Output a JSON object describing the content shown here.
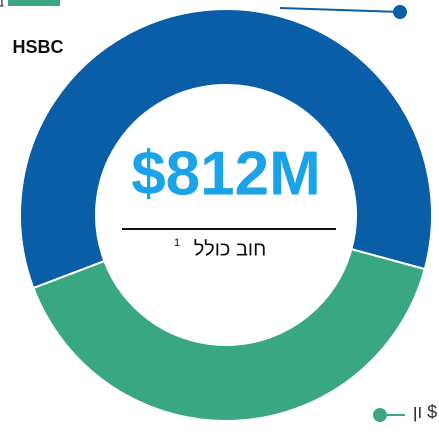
{
  "chart_data": {
    "type": "donut",
    "categories": [
      "HSBC",
      "ון $"
    ],
    "values": [
      60,
      40
    ],
    "colors": [
      "#0a5ea8",
      "#3aa783"
    ],
    "center_value": "$812M",
    "center_label": "חוב כולל",
    "center_label_note": "1",
    "legend_partial": "ב"
  }
}
